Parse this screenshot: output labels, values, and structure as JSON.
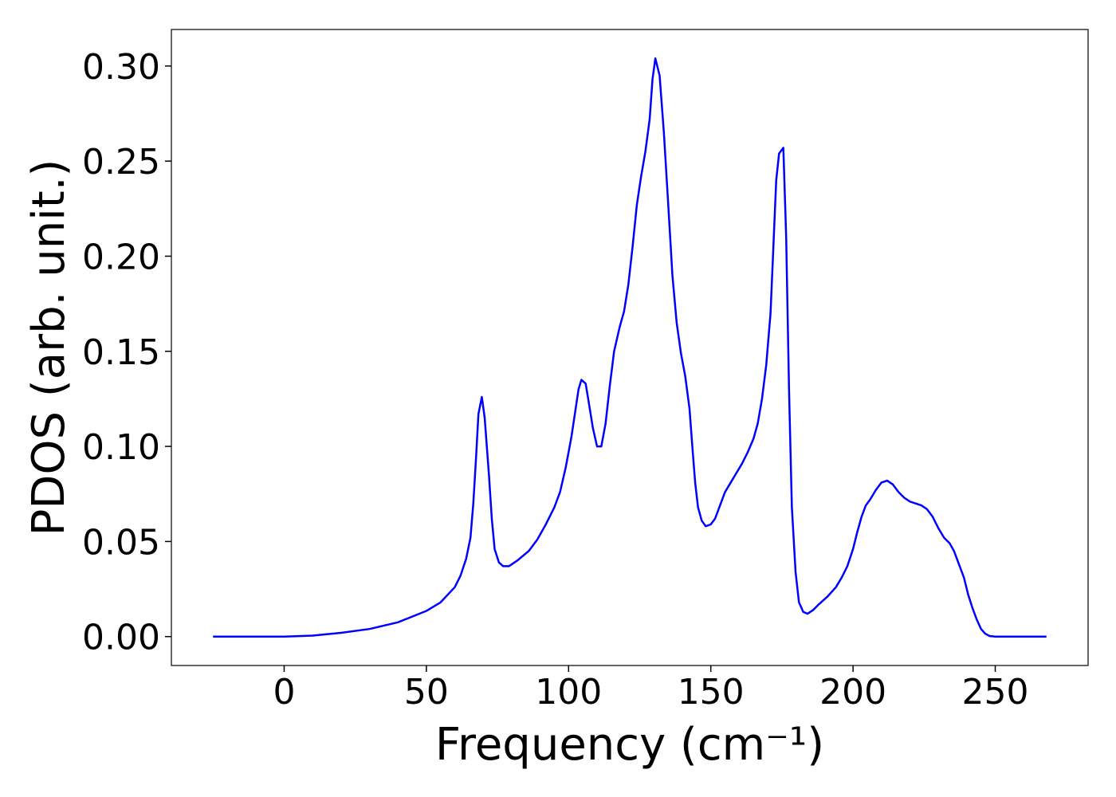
{
  "chart_data": {
    "type": "line",
    "x_label": "Frequency (cm⁻¹)",
    "y_label": "PDOS (arb. unit.)",
    "color": "#0000ff",
    "x": [
      -25,
      0,
      10,
      20,
      30,
      40,
      50,
      55,
      60,
      62,
      64,
      65.5,
      66.5,
      67.5,
      68.3,
      69.5,
      70.5,
      72,
      73,
      74,
      75.5,
      77,
      79,
      82,
      86,
      89,
      92,
      95,
      97,
      99,
      101,
      102.5,
      103.5,
      104.5,
      106,
      107,
      108.5,
      110,
      111.5,
      113,
      114.5,
      116,
      118,
      119.5,
      121,
      122.5,
      124,
      125.5,
      127,
      128.5,
      129.5,
      130.5,
      132,
      133.5,
      135,
      136.5,
      138,
      139.5,
      141,
      142.5,
      143.5,
      144.5,
      145.5,
      146.8,
      148.2,
      150,
      151.5,
      153,
      155,
      157,
      159,
      161,
      163,
      165,
      166.5,
      168,
      169.5,
      171,
      172,
      173,
      174,
      175.5,
      176.5,
      177.5,
      178.5,
      179.8,
      181,
      182.5,
      184,
      186,
      188,
      191,
      194,
      196,
      198,
      200,
      201.5,
      203,
      204.5,
      206,
      208,
      210,
      212,
      214,
      216,
      218,
      220,
      222,
      224,
      226,
      228,
      230,
      232,
      234,
      235.5,
      237,
      239,
      240.5,
      242,
      243.5,
      245,
      246.5,
      248,
      250,
      268
    ],
    "values": [
      0,
      0,
      0.0005,
      0.002,
      0.004,
      0.0075,
      0.0135,
      0.018,
      0.026,
      0.032,
      0.041,
      0.052,
      0.07,
      0.095,
      0.117,
      0.126,
      0.115,
      0.085,
      0.062,
      0.046,
      0.039,
      0.037,
      0.037,
      0.04,
      0.045,
      0.051,
      0.059,
      0.068,
      0.076,
      0.089,
      0.105,
      0.12,
      0.13,
      0.135,
      0.133,
      0.124,
      0.11,
      0.1,
      0.1,
      0.112,
      0.132,
      0.15,
      0.163,
      0.171,
      0.185,
      0.205,
      0.227,
      0.242,
      0.255,
      0.272,
      0.293,
      0.304,
      0.295,
      0.265,
      0.228,
      0.19,
      0.165,
      0.149,
      0.137,
      0.12,
      0.1,
      0.081,
      0.068,
      0.061,
      0.058,
      0.059,
      0.062,
      0.068,
      0.076,
      0.081,
      0.086,
      0.091,
      0.097,
      0.104,
      0.112,
      0.125,
      0.143,
      0.17,
      0.205,
      0.24,
      0.254,
      0.257,
      0.21,
      0.13,
      0.068,
      0.034,
      0.018,
      0.013,
      0.012,
      0.014,
      0.017,
      0.021,
      0.026,
      0.031,
      0.037,
      0.046,
      0.055,
      0.063,
      0.069,
      0.072,
      0.077,
      0.081,
      0.082,
      0.08,
      0.076,
      0.073,
      0.071,
      0.07,
      0.069,
      0.067,
      0.063,
      0.057,
      0.052,
      0.049,
      0.045,
      0.039,
      0.031,
      0.022,
      0.015,
      0.009,
      0.004,
      0.0015,
      0.0003,
      0,
      0
    ],
    "xlim": [
      -39.65,
      282.65
    ],
    "ylim": [
      -0.0152,
      0.3192
    ],
    "xticks": [
      0,
      50,
      100,
      150,
      200,
      250
    ],
    "yticks": [
      {
        "value": 0,
        "label": "0.00"
      },
      0.05,
      {
        "value": 0.1,
        "label": "0.10"
      },
      0.15,
      {
        "value": 0.2,
        "label": "0.20"
      },
      0.25,
      {
        "value": 0.3,
        "label": "0.30"
      }
    ]
  }
}
